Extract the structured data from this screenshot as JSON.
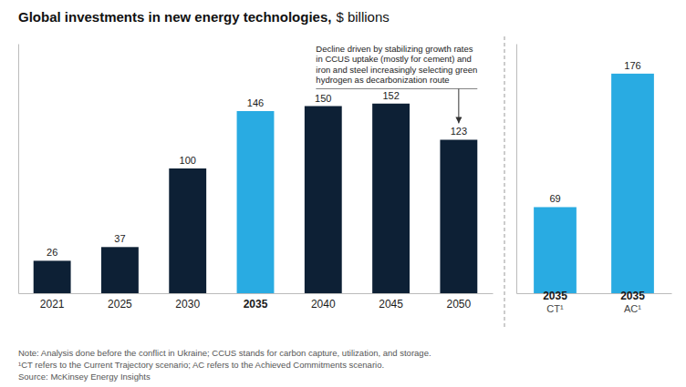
{
  "chart_data": [
    {
      "type": "bar",
      "title": "Global investments in new energy technologies,",
      "subtitle": "$ billions",
      "categories": [
        "2021",
        "2025",
        "2030",
        "2035",
        "2040",
        "2045",
        "2050"
      ],
      "values": [
        26,
        37,
        100,
        146,
        150,
        152,
        123
      ],
      "colors": [
        "#0d2035",
        "#0d2035",
        "#0d2035",
        "#29abe2",
        "#0d2035",
        "#0d2035",
        "#0d2035"
      ],
      "ylim": [
        0,
        200
      ],
      "tick_labels": "x",
      "data_labels": true,
      "annotations": [
        {
          "text": "Decline driven by stabilizing growth rates\nin CCUS uptake (mostly for cement) and\niron and steel increasingly selecting green\nhydrogen as decarbonization route",
          "x": "2050"
        }
      ],
      "note": "Note: Analysis done before the conflict in Ukraine; CCUS stands for carbon capture, utilization, and storage.\n¹CT refers to the Current Trajectory scenario; AC refers to the Achieved Commitments scenario.\nSource: McKinsey Energy Insights"
    },
    {
      "type": "bar",
      "categories": [
        "2035\nCT¹",
        "2035\nAC¹"
      ],
      "values": [
        69,
        176
      ],
      "colors": [
        "#29abe2",
        "#29abe2"
      ],
      "ylim": [
        0,
        200
      ],
      "tick_labels": "x",
      "data_labels": true
    }
  ]
}
